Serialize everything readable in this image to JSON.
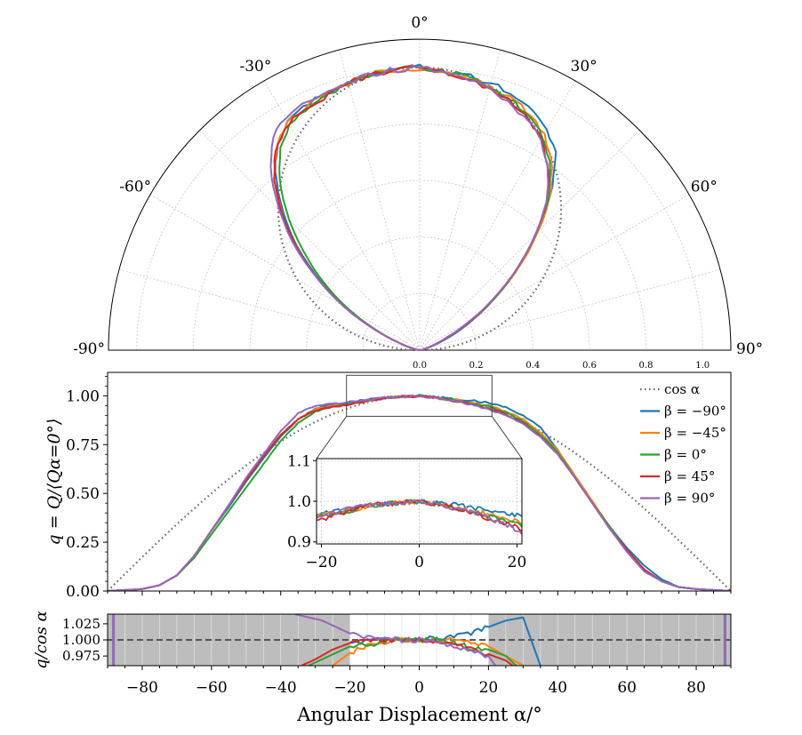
{
  "chart_data": [
    {
      "type": "polar-line",
      "theta_labels": [
        "-90°",
        "-60°",
        "-30°",
        "0°",
        "30°",
        "60°",
        "90°"
      ],
      "theta_values": [
        -90,
        -60,
        -30,
        0,
        30,
        60,
        90
      ],
      "r_tick_labels": [
        "0.0",
        "0.2",
        "0.4",
        "0.6",
        "0.8",
        "1.0"
      ],
      "r_ticks": [
        0,
        0.2,
        0.4,
        0.6,
        0.8,
        1.0
      ],
      "rlim": [
        0,
        1.1
      ],
      "grid": true,
      "reference": "cos α (dotted)"
    },
    {
      "type": "line",
      "ylabel": "q = Q/⟨Qα=0°⟩",
      "x_tick_labels": [
        "−80",
        "−60",
        "−40",
        "−20",
        "0",
        "20",
        "40",
        "60",
        "80"
      ],
      "y_tick_labels": [
        "0.00",
        "0.25",
        "0.50",
        "0.75",
        "1.00"
      ],
      "y_ticks": [
        0,
        0.25,
        0.5,
        0.75,
        1.0
      ],
      "xlim": [
        -90,
        90
      ],
      "ylim": [
        0,
        1.12
      ],
      "legend_position": "top-right",
      "legend": [
        {
          "label": "cos α",
          "color": "#666666",
          "style": "dotted"
        },
        {
          "label": "β = −90°",
          "color": "#1f77b4"
        },
        {
          "label": "β = −45°",
          "color": "#ff7f0e"
        },
        {
          "label": "β = 0°",
          "color": "#2ca02c"
        },
        {
          "label": "β = 45°",
          "color": "#d62728"
        },
        {
          "label": "β = 90°",
          "color": "#9467bd"
        }
      ],
      "series": [
        {
          "name": "β = −90°",
          "color": "#1f77b4",
          "x": [
            -90,
            -85,
            -80,
            -75,
            -70,
            -65,
            -60,
            -55,
            -50,
            -45,
            -40,
            -35,
            -30,
            -25,
            -20,
            -15,
            -10,
            -5,
            0,
            5,
            10,
            15,
            20,
            25,
            30,
            35,
            40,
            45,
            50,
            55,
            60,
            65,
            70,
            75,
            80,
            85,
            90
          ],
          "values": [
            0,
            0.005,
            0.01,
            0.03,
            0.08,
            0.18,
            0.31,
            0.43,
            0.56,
            0.68,
            0.79,
            0.88,
            0.935,
            0.955,
            0.97,
            0.98,
            0.99,
            0.995,
            1.0,
            0.995,
            0.985,
            0.975,
            0.965,
            0.94,
            0.9,
            0.84,
            0.72,
            0.58,
            0.45,
            0.33,
            0.22,
            0.13,
            0.06,
            0.02,
            0.01,
            0.005,
            0
          ]
        },
        {
          "name": "β = −45°",
          "color": "#ff7f0e",
          "x": [
            -90,
            -85,
            -80,
            -75,
            -70,
            -65,
            -60,
            -55,
            -50,
            -45,
            -40,
            -35,
            -30,
            -25,
            -20,
            -15,
            -10,
            -5,
            0,
            5,
            10,
            15,
            20,
            25,
            30,
            35,
            40,
            45,
            50,
            55,
            60,
            65,
            70,
            75,
            80,
            85,
            90
          ],
          "values": [
            0,
            0.005,
            0.01,
            0.03,
            0.08,
            0.18,
            0.31,
            0.44,
            0.57,
            0.69,
            0.8,
            0.88,
            0.93,
            0.95,
            0.965,
            0.975,
            0.99,
            0.995,
            1.0,
            0.99,
            0.98,
            0.965,
            0.95,
            0.92,
            0.88,
            0.81,
            0.72,
            0.59,
            0.46,
            0.33,
            0.21,
            0.11,
            0.05,
            0.02,
            0.01,
            0.005,
            0
          ]
        },
        {
          "name": "β = 0°",
          "color": "#2ca02c",
          "x": [
            -90,
            -85,
            -80,
            -75,
            -70,
            -65,
            -60,
            -55,
            -50,
            -45,
            -40,
            -35,
            -30,
            -25,
            -20,
            -15,
            -10,
            -5,
            0,
            5,
            10,
            15,
            20,
            25,
            30,
            35,
            40,
            45,
            50,
            55,
            60,
            65,
            70,
            75,
            80,
            85,
            90
          ],
          "values": [
            0,
            0.005,
            0.01,
            0.03,
            0.08,
            0.17,
            0.29,
            0.41,
            0.53,
            0.65,
            0.77,
            0.86,
            0.92,
            0.945,
            0.96,
            0.975,
            0.99,
            0.995,
            1.0,
            0.99,
            0.975,
            0.96,
            0.945,
            0.915,
            0.87,
            0.8,
            0.71,
            0.58,
            0.45,
            0.33,
            0.21,
            0.11,
            0.05,
            0.02,
            0.01,
            0.005,
            0
          ]
        },
        {
          "name": "β = 45°",
          "color": "#d62728",
          "x": [
            -90,
            -85,
            -80,
            -75,
            -70,
            -65,
            -60,
            -55,
            -50,
            -45,
            -40,
            -35,
            -30,
            -25,
            -20,
            -15,
            -10,
            -5,
            0,
            5,
            10,
            15,
            20,
            25,
            30,
            35,
            40,
            45,
            50,
            55,
            60,
            65,
            70,
            75,
            80,
            85,
            90
          ],
          "values": [
            0,
            0.005,
            0.01,
            0.03,
            0.08,
            0.18,
            0.31,
            0.44,
            0.57,
            0.69,
            0.8,
            0.88,
            0.925,
            0.945,
            0.955,
            0.975,
            0.99,
            0.995,
            1.0,
            0.99,
            0.975,
            0.955,
            0.935,
            0.905,
            0.86,
            0.79,
            0.7,
            0.58,
            0.45,
            0.32,
            0.21,
            0.11,
            0.05,
            0.02,
            0.01,
            0.005,
            0
          ]
        },
        {
          "name": "β = 90°",
          "color": "#9467bd",
          "x": [
            -90,
            -85,
            -80,
            -75,
            -70,
            -65,
            -60,
            -55,
            -50,
            -45,
            -40,
            -35,
            -30,
            -25,
            -20,
            -15,
            -10,
            -5,
            0,
            5,
            10,
            15,
            20,
            25,
            30,
            35,
            40,
            45,
            50,
            55,
            60,
            65,
            70,
            75,
            80,
            85,
            90
          ],
          "values": [
            0,
            0.005,
            0.01,
            0.03,
            0.08,
            0.18,
            0.31,
            0.44,
            0.58,
            0.7,
            0.82,
            0.91,
            0.95,
            0.96,
            0.965,
            0.98,
            0.99,
            0.995,
            1.0,
            0.99,
            0.975,
            0.955,
            0.93,
            0.9,
            0.855,
            0.79,
            0.7,
            0.58,
            0.45,
            0.32,
            0.2,
            0.1,
            0.05,
            0.02,
            0.01,
            0.005,
            0
          ]
        }
      ]
    },
    {
      "type": "line",
      "role": "inset",
      "x_tick_labels": [
        "−20",
        "0",
        "20"
      ],
      "y_tick_labels": [
        "0.9",
        "1.0",
        "1.1"
      ],
      "y_ticks": [
        0.9,
        1.0,
        1.1
      ],
      "xlim": [
        -21,
        21
      ],
      "ylim": [
        0.895,
        1.105
      ]
    },
    {
      "type": "line",
      "ylabel": "q/cos α",
      "xlabel": "Angular Displacement α/°",
      "x_tick_labels": [
        "−80",
        "−60",
        "−40",
        "−20",
        "0",
        "20",
        "40",
        "60",
        "80"
      ],
      "x_ticks": [
        -80,
        -60,
        -40,
        -20,
        0,
        20,
        40,
        60,
        80
      ],
      "y_tick_labels": [
        "1.025",
        "1.000",
        "0.975"
      ],
      "y_ticks": [
        1.025,
        1.0,
        0.975
      ],
      "xlim": [
        -90,
        90
      ],
      "ylim": [
        0.96,
        1.04
      ],
      "reference_line": 1.0,
      "shaded_regions": [
        [
          -90,
          -20
        ],
        [
          20,
          90
        ]
      ],
      "series": [
        {
          "name": "β = −90°",
          "color": "#1f77b4",
          "x": [
            -20,
            -15,
            -10,
            -5,
            0,
            5,
            10,
            15,
            20,
            25,
            30,
            35
          ],
          "values": [
            0.995,
            0.998,
            1.0,
            1.0,
            1.0,
            1.003,
            1.005,
            1.01,
            1.02,
            1.03,
            1.035,
            0.96
          ]
        },
        {
          "name": "β = −45°",
          "color": "#ff7f0e",
          "x": [
            -25,
            -20,
            -15,
            -10,
            -5,
            0,
            5,
            10,
            15,
            20,
            25,
            30
          ],
          "values": [
            0.96,
            0.98,
            0.99,
            0.997,
            1.0,
            1.0,
            1.0,
            1.0,
            0.998,
            0.99,
            0.975,
            0.96
          ]
        },
        {
          "name": "β = 0°",
          "color": "#2ca02c",
          "x": [
            -32,
            -28,
            -24,
            -20,
            -15,
            -10,
            -5,
            0,
            5,
            10,
            15,
            20,
            25,
            28
          ],
          "values": [
            0.96,
            0.97,
            0.98,
            0.99,
            0.993,
            0.997,
            1.0,
            1.0,
            1.0,
            0.995,
            0.988,
            0.985,
            0.975,
            0.96
          ]
        },
        {
          "name": "β = 45°",
          "color": "#d62728",
          "x": [
            -34,
            -30,
            -25,
            -20,
            -15,
            -10,
            -5,
            0,
            5,
            10,
            15,
            20,
            25,
            27
          ],
          "values": [
            0.96,
            0.97,
            0.985,
            0.995,
            1.0,
            1.0,
            1.0,
            1.0,
            0.998,
            0.992,
            0.985,
            0.978,
            0.968,
            0.96
          ]
        },
        {
          "name": "β = 90°",
          "color": "#9467bd",
          "x": [
            -36,
            -32,
            -28,
            -24,
            -20,
            -15,
            -10,
            -5,
            0,
            5,
            10,
            15,
            20,
            22
          ],
          "values": [
            1.04,
            1.035,
            1.03,
            1.02,
            1.01,
            1.005,
            1.003,
            1.0,
            1.0,
            0.996,
            0.99,
            0.985,
            0.975,
            0.96
          ]
        }
      ]
    }
  ]
}
